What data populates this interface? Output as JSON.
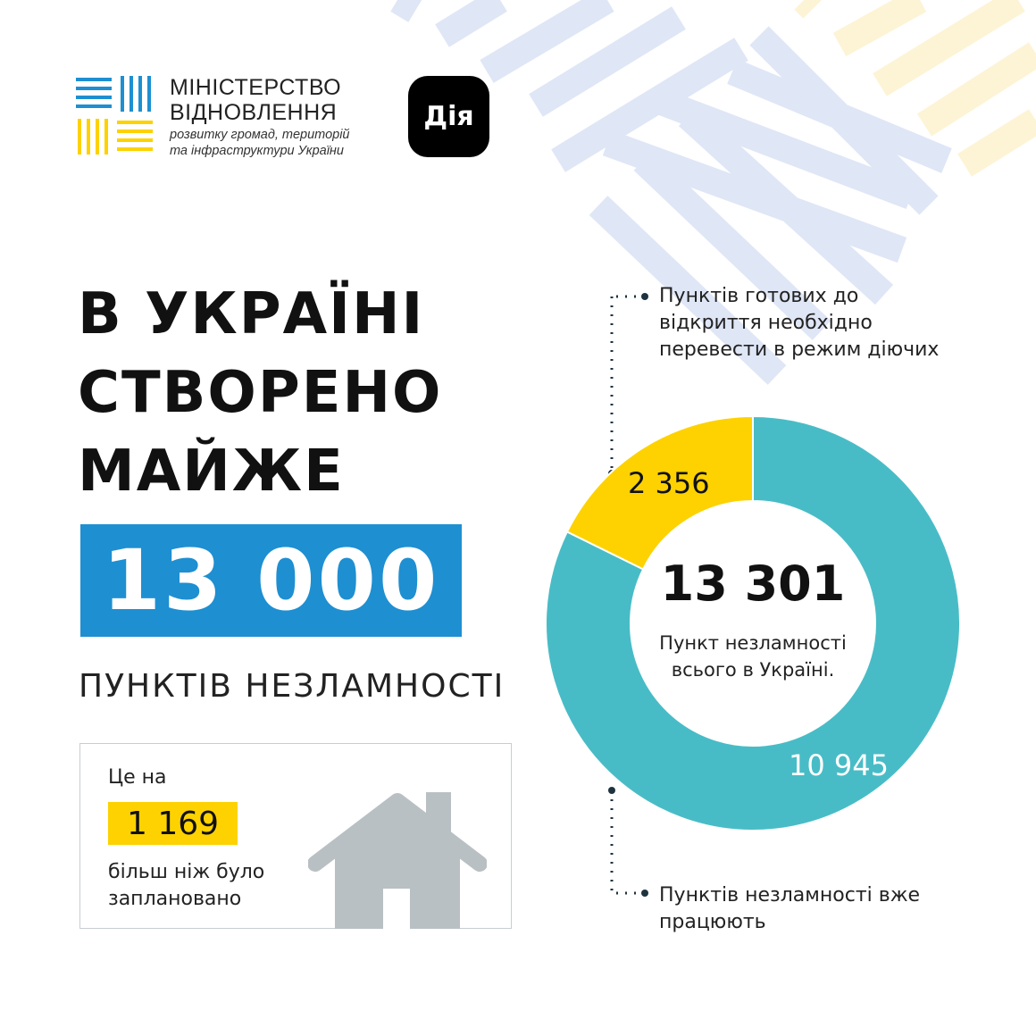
{
  "header": {
    "ministry_line1": "МІНІСТЕРСТВО",
    "ministry_line2": "ВІДНОВЛЕННЯ",
    "ministry_sub1": "розвитку громад, територій",
    "ministry_sub2": "та інфраструктури України",
    "diia_logo": "Дія"
  },
  "headline": {
    "line1": "В УКРАЇНІ",
    "line2": "СТВОРЕНО",
    "line3": "МАЙЖЕ",
    "big_number": "13 000",
    "subtitle": "ПУНКТІВ НЕЗЛАМНОСТІ"
  },
  "card": {
    "text1": "Це на",
    "number": "1 169",
    "text2": "більш ніж було",
    "text3": "заплановано",
    "icon": "house-icon"
  },
  "annotations": {
    "top": [
      "Пунктів готових до",
      "відкриття необхідно",
      "перевести в режим діючих"
    ],
    "bottom": [
      "Пунктів незламності вже",
      "працюють"
    ]
  },
  "colors": {
    "blue": "#1e8fd1",
    "yellow": "#fdd200",
    "teal": "#48bcc6",
    "stripe_blue": "#dfe6f6",
    "stripe_yellow": "#fdf4d6"
  },
  "chart_data": {
    "type": "pie",
    "donut": true,
    "total": "13 301",
    "center_label": [
      "Пункт незламності",
      "всього в Україні."
    ],
    "slices": [
      {
        "label": "2 356",
        "value": 2356,
        "color": "#fdd200"
      },
      {
        "label": "10 945",
        "value": 10945,
        "color": "#48bcc6"
      }
    ]
  }
}
